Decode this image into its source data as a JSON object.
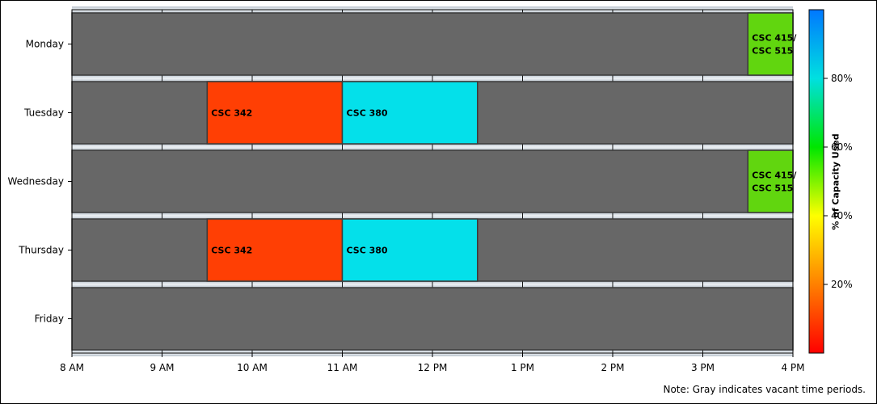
{
  "chart_data": {
    "type": "gantt",
    "days": [
      "Monday",
      "Tuesday",
      "Wednesday",
      "Thursday",
      "Friday"
    ],
    "x_ticks": [
      {
        "value": 8,
        "label": "8 AM"
      },
      {
        "value": 9,
        "label": "9 AM"
      },
      {
        "value": 10,
        "label": "10 AM"
      },
      {
        "value": 11,
        "label": "11 AM"
      },
      {
        "value": 12,
        "label": "12 PM"
      },
      {
        "value": 13,
        "label": "1 PM"
      },
      {
        "value": 14,
        "label": "2 PM"
      },
      {
        "value": 15,
        "label": "3 PM"
      },
      {
        "value": 16,
        "label": "4 PM"
      }
    ],
    "xlim": [
      8,
      16
    ],
    "vacant_color": "#676767",
    "bars": [
      {
        "day": "Monday",
        "start": 15.5,
        "end": 16,
        "label": [
          "CSC 415/",
          "CSC 515"
        ],
        "capacity": 62,
        "color": "#61d60f"
      },
      {
        "day": "Tuesday",
        "start": 9.5,
        "end": 11,
        "label": [
          "CSC 342"
        ],
        "capacity": 28,
        "color": "#ff3f04"
      },
      {
        "day": "Tuesday",
        "start": 11,
        "end": 12.5,
        "label": [
          "CSC 380"
        ],
        "capacity": 84,
        "color": "#04e0ea"
      },
      {
        "day": "Wednesday",
        "start": 15.5,
        "end": 16,
        "label": [
          "CSC 415/",
          "CSC 515"
        ],
        "capacity": 62,
        "color": "#61d60f"
      },
      {
        "day": "Thursday",
        "start": 9.5,
        "end": 11,
        "label": [
          "CSC 342"
        ],
        "capacity": 28,
        "color": "#ff3f04"
      },
      {
        "day": "Thursday",
        "start": 11,
        "end": 12.5,
        "label": [
          "CSC 380"
        ],
        "capacity": 84,
        "color": "#04e0ea"
      }
    ],
    "colorbar": {
      "title": "% of Capacity Used",
      "ticks": [
        {
          "value": 20,
          "label": "20%"
        },
        {
          "value": 40,
          "label": "40%"
        },
        {
          "value": 60,
          "label": "60%"
        },
        {
          "value": 80,
          "label": "80%"
        }
      ],
      "range": [
        0,
        100
      ],
      "stops": [
        "#ff0000",
        "#ff8000",
        "#ffff00",
        "#00e600",
        "#00e0e0",
        "#0078ff"
      ]
    },
    "note": "Note: Gray indicates vacant time periods."
  }
}
